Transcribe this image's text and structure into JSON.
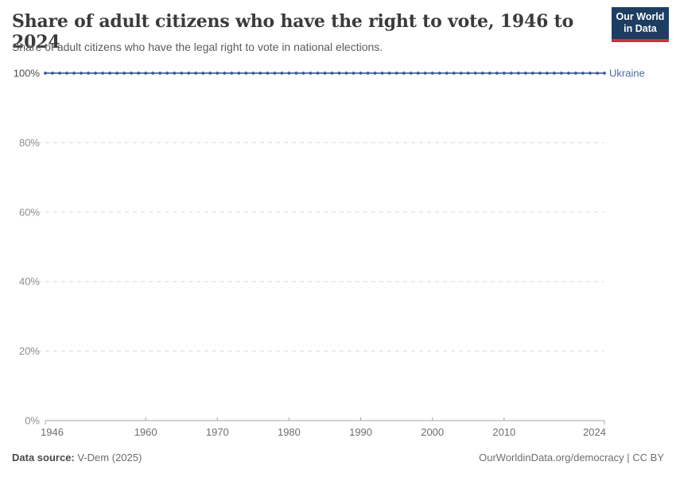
{
  "header": {
    "title": "Share of adult citizens who have the right to vote, 1946 to 2024",
    "subtitle": "Share of adult citizens who have the legal right to vote in national elections.",
    "logo": {
      "line1": "Our World",
      "line2": "in Data"
    }
  },
  "chart_data": {
    "type": "line",
    "title": "Share of adult citizens who have the right to vote, 1946 to 2024",
    "xlabel": "",
    "ylabel": "",
    "xlim": [
      1946,
      2024
    ],
    "ylim": [
      0,
      100
    ],
    "grid": "horizontal-dashed",
    "legend": "entity label at right end of line",
    "x": [
      1946,
      1947,
      1948,
      1949,
      1950,
      1951,
      1952,
      1953,
      1954,
      1955,
      1956,
      1957,
      1958,
      1959,
      1960,
      1961,
      1962,
      1963,
      1964,
      1965,
      1966,
      1967,
      1968,
      1969,
      1970,
      1971,
      1972,
      1973,
      1974,
      1975,
      1976,
      1977,
      1978,
      1979,
      1980,
      1981,
      1982,
      1983,
      1984,
      1985,
      1986,
      1987,
      1988,
      1989,
      1990,
      1991,
      1992,
      1993,
      1994,
      1995,
      1996,
      1997,
      1998,
      1999,
      2000,
      2001,
      2002,
      2003,
      2004,
      2005,
      2006,
      2007,
      2008,
      2009,
      2010,
      2011,
      2012,
      2013,
      2014,
      2015,
      2016,
      2017,
      2018,
      2019,
      2020,
      2021,
      2022,
      2023,
      2024
    ],
    "series": [
      {
        "name": "Ukraine",
        "color": "#4C6A9C",
        "values": [
          100,
          100,
          100,
          100,
          100,
          100,
          100,
          100,
          100,
          100,
          100,
          100,
          100,
          100,
          100,
          100,
          100,
          100,
          100,
          100,
          100,
          100,
          100,
          100,
          100,
          100,
          100,
          100,
          100,
          100,
          100,
          100,
          100,
          100,
          100,
          100,
          100,
          100,
          100,
          100,
          100,
          100,
          100,
          100,
          100,
          100,
          100,
          100,
          100,
          100,
          100,
          100,
          100,
          100,
          100,
          100,
          100,
          100,
          100,
          100,
          100,
          100,
          100,
          100,
          100,
          100,
          100,
          100,
          100,
          100,
          100,
          100,
          100,
          100,
          100,
          100,
          100,
          100,
          100
        ]
      }
    ],
    "x_ticks": [
      {
        "v": 1946,
        "label": "1946"
      },
      {
        "v": 1960,
        "label": "1960"
      },
      {
        "v": 1970,
        "label": "1970"
      },
      {
        "v": 1980,
        "label": "1980"
      },
      {
        "v": 1990,
        "label": "1990"
      },
      {
        "v": 2000,
        "label": "2000"
      },
      {
        "v": 2010,
        "label": "2010"
      },
      {
        "v": 2024,
        "label": "2024"
      }
    ],
    "y_ticks": [
      {
        "v": 0,
        "label": "0%"
      },
      {
        "v": 20,
        "label": "20%"
      },
      {
        "v": 40,
        "label": "40%"
      },
      {
        "v": 60,
        "label": "60%"
      },
      {
        "v": 80,
        "label": "80%"
      },
      {
        "v": 100,
        "label": "100%"
      }
    ]
  },
  "colors": {
    "series_line": "#4C6A9C",
    "series_point": "#3A5A94",
    "entity_label": "#4C6A9C",
    "grid": "#DCDCDC",
    "axis": "#A5A5A5",
    "y_label": "#8E8E8E",
    "y_label_emph": "#4E4E4E",
    "x_label": "#6E6E6E",
    "logo_bg": "#1D3D63",
    "logo_red": "#CF2E41"
  },
  "footer": {
    "source_label": "Data source:",
    "source_value": "V-Dem (2025)",
    "right_text": "OurWorldinData.org/democracy | CC BY"
  }
}
